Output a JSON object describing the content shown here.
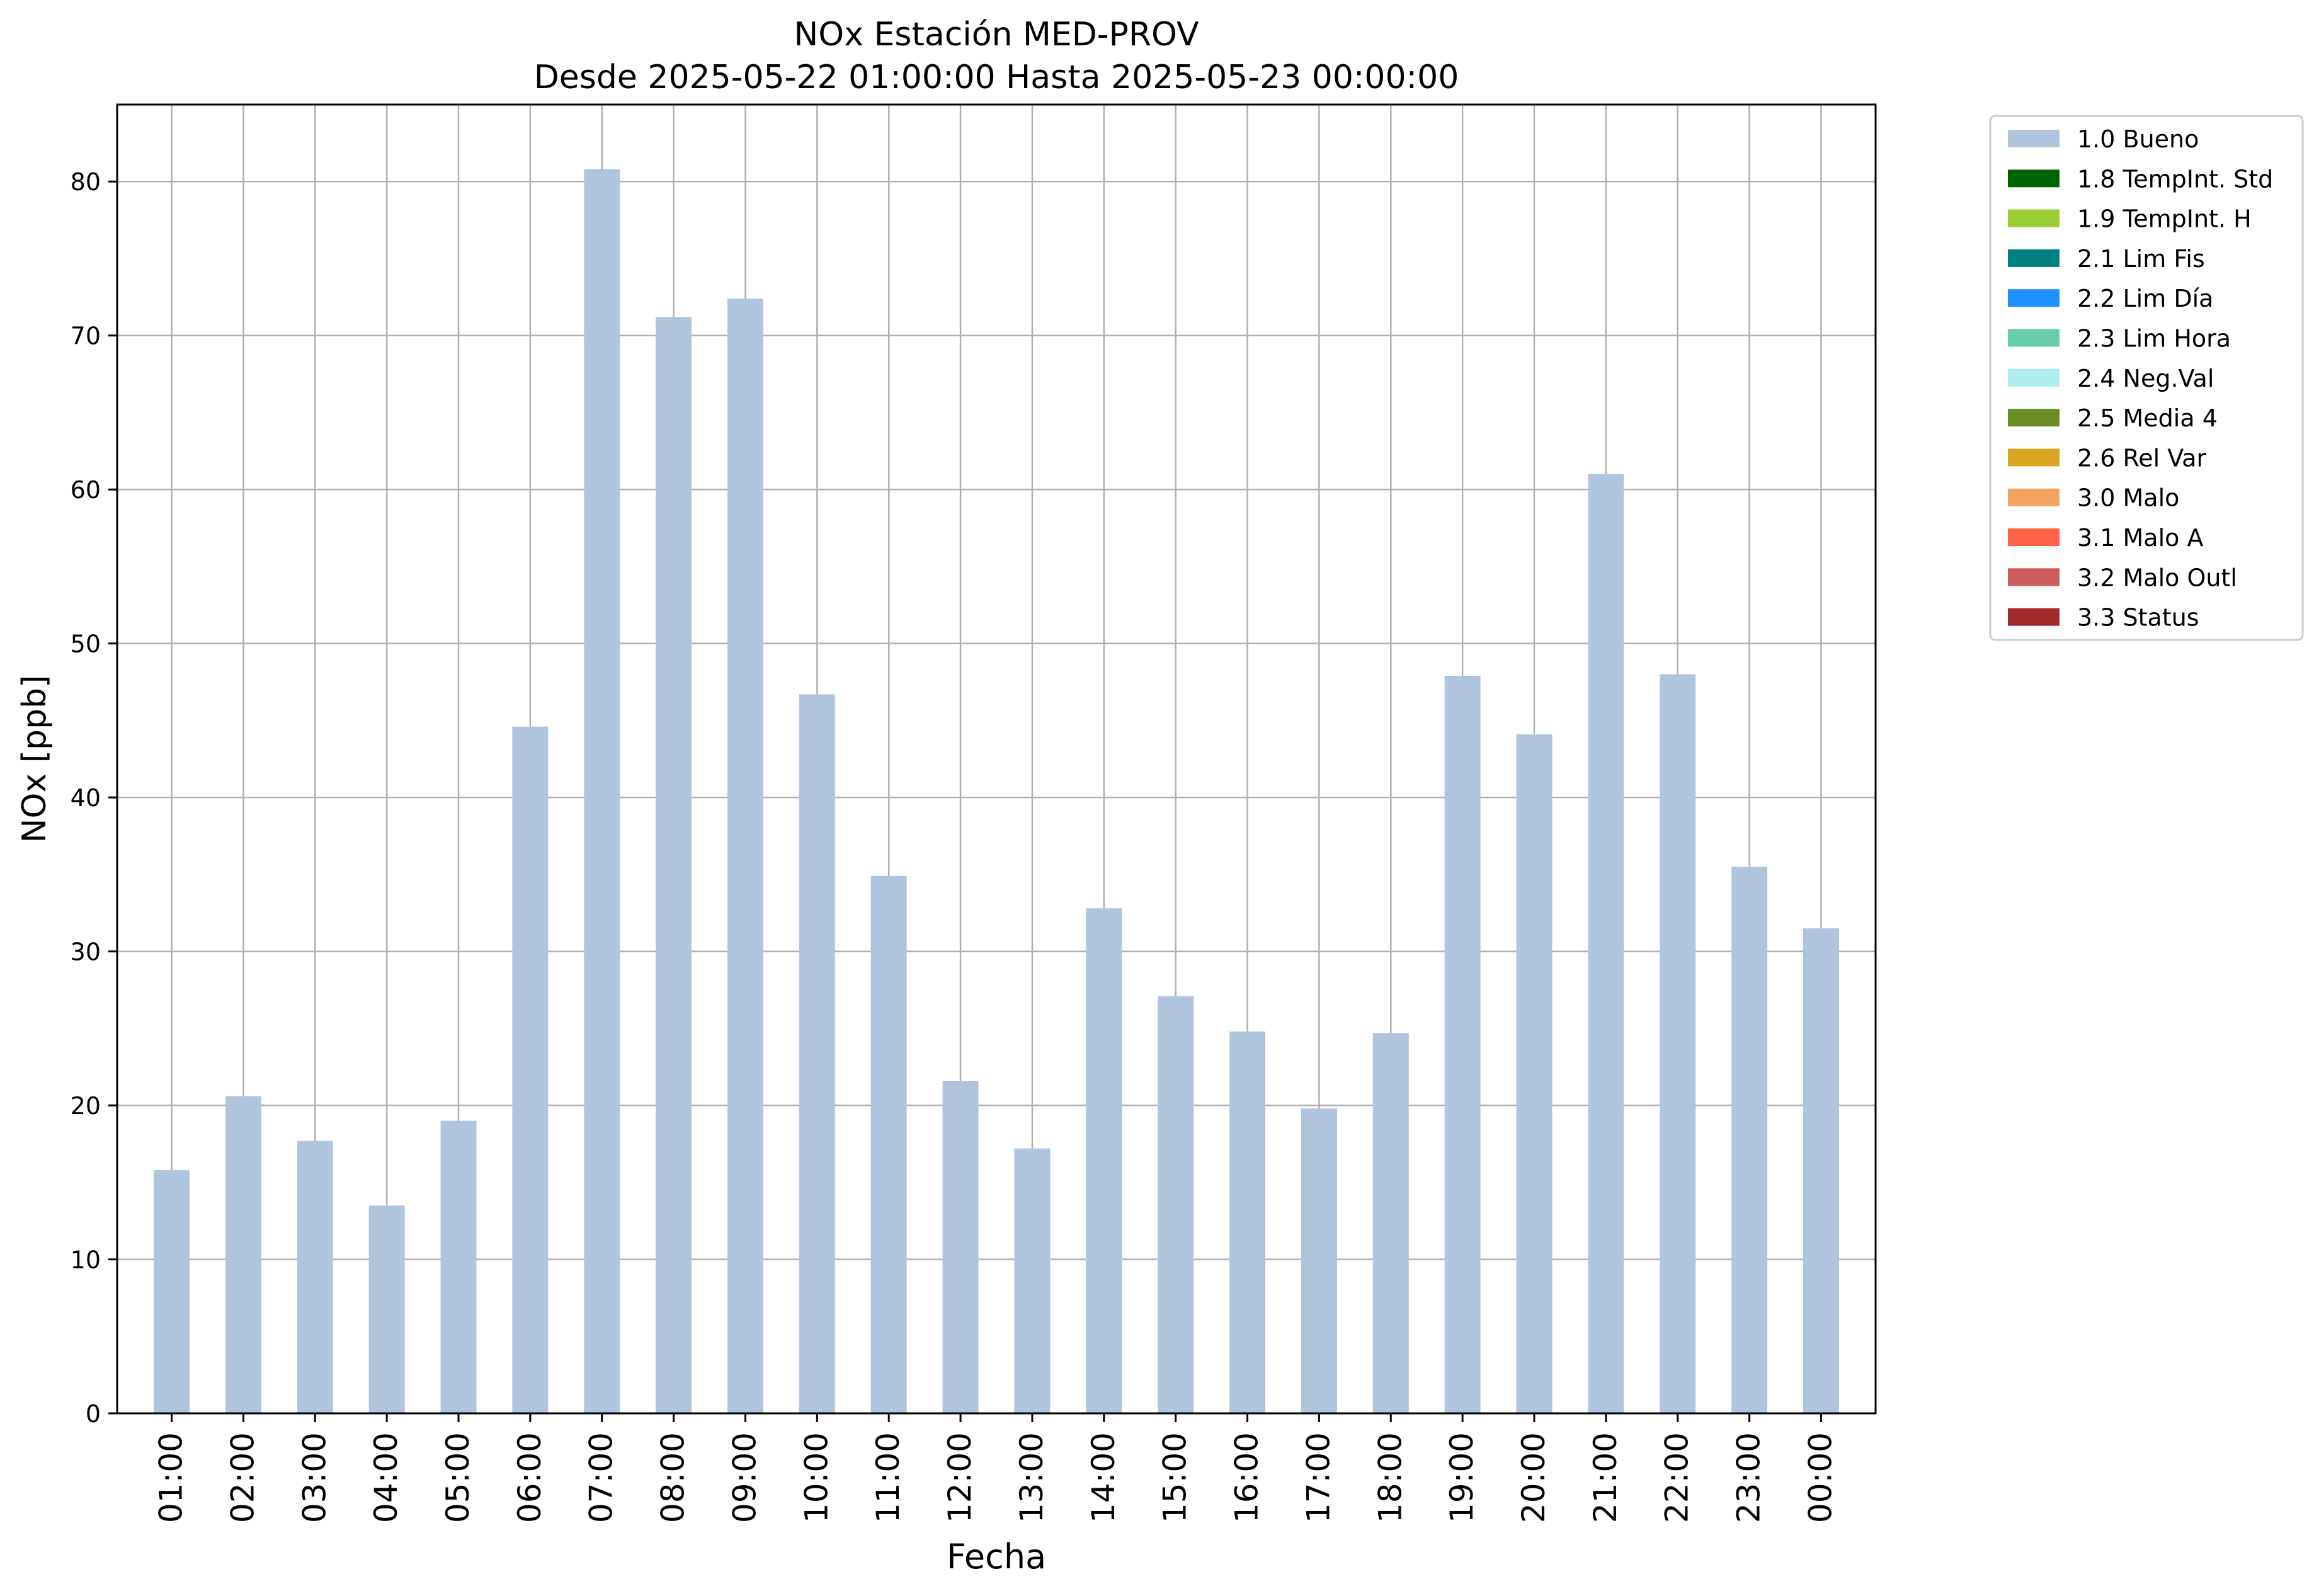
{
  "chart_data": {
    "type": "bar",
    "title": "NOx Estación MED-PROV",
    "subtitle": "Desde 2025-05-22 01:00:00 Hasta 2025-05-23 00:00:00",
    "xlabel": "Fecha",
    "ylabel": "NOx [ppb]",
    "ylim": [
      0,
      85
    ],
    "yticks": [
      0,
      10,
      20,
      30,
      40,
      50,
      60,
      70,
      80
    ],
    "grid": true,
    "legend_position": "outside-top-right",
    "categories": [
      "01:00",
      "02:00",
      "03:00",
      "04:00",
      "05:00",
      "06:00",
      "07:00",
      "08:00",
      "09:00",
      "10:00",
      "11:00",
      "12:00",
      "13:00",
      "14:00",
      "15:00",
      "16:00",
      "17:00",
      "18:00",
      "19:00",
      "20:00",
      "21:00",
      "22:00",
      "23:00",
      "00:00"
    ],
    "series": [
      {
        "name": "1.0 Bueno",
        "color": "#b0c4de",
        "values": [
          15.8,
          20.6,
          17.7,
          13.5,
          19.0,
          44.6,
          80.8,
          71.2,
          72.4,
          46.7,
          34.9,
          21.6,
          17.2,
          32.8,
          27.1,
          24.8,
          19.8,
          24.7,
          47.9,
          44.1,
          61.0,
          48.0,
          35.5,
          31.5
        ]
      }
    ],
    "legend": [
      {
        "label": "1.0 Bueno",
        "color": "#b0c4de"
      },
      {
        "label": "1.8 TempInt. Std",
        "color": "#006400"
      },
      {
        "label": "1.9 TempInt. H",
        "color": "#9acd32"
      },
      {
        "label": "2.1 Lim Fis",
        "color": "#008080"
      },
      {
        "label": "2.2 Lim Día",
        "color": "#1e90ff"
      },
      {
        "label": "2.3 Lim Hora",
        "color": "#66cdaa"
      },
      {
        "label": "2.4 Neg.Val",
        "color": "#afeeee"
      },
      {
        "label": "2.5 Media 4",
        "color": "#6b8e23"
      },
      {
        "label": "2.6 Rel Var",
        "color": "#daa520"
      },
      {
        "label": "3.0 Malo",
        "color": "#f4a460"
      },
      {
        "label": "3.1 Malo A",
        "color": "#ff6347"
      },
      {
        "label": "3.2 Malo Outl",
        "color": "#cd5c5c"
      },
      {
        "label": "3.3 Status",
        "color": "#a52a2a"
      }
    ]
  }
}
